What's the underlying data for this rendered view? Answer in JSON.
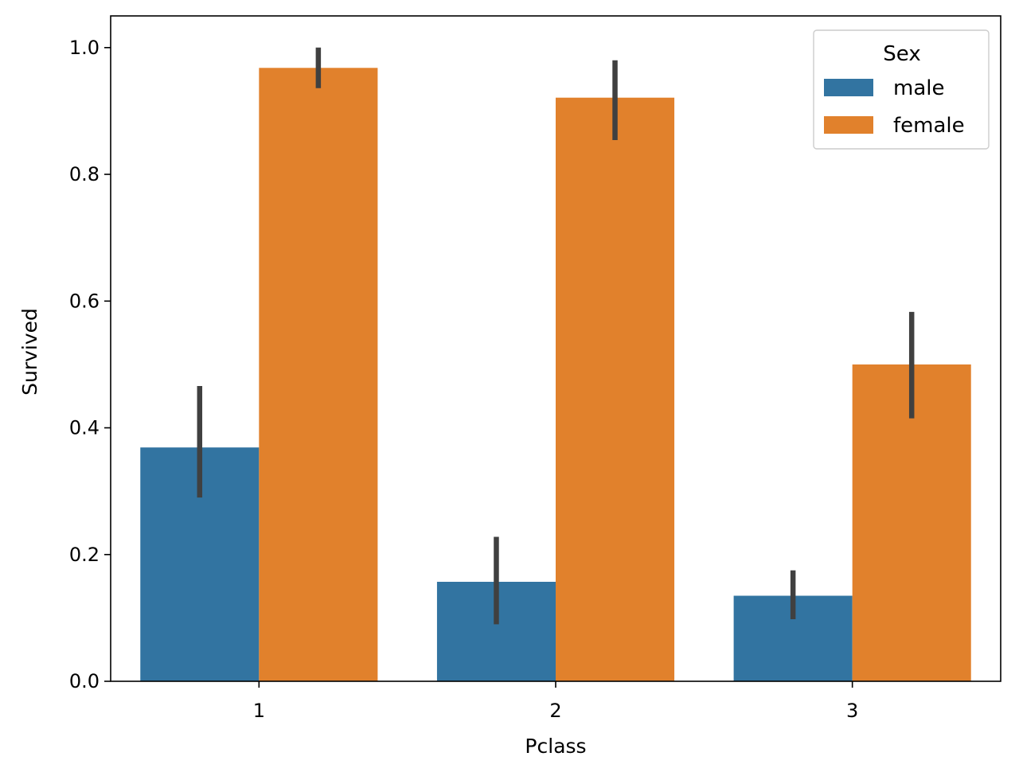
{
  "chart_data": {
    "type": "bar",
    "title": "",
    "xlabel": "Pclass",
    "ylabel": "Survived",
    "categories": [
      "1",
      "2",
      "3"
    ],
    "ylim": [
      0,
      1.05
    ],
    "yticks": [
      0.0,
      0.2,
      0.4,
      0.6,
      0.8,
      1.0
    ],
    "ytick_labels": [
      "0.0",
      "0.2",
      "0.4",
      "0.6",
      "0.8",
      "1.0"
    ],
    "grid": false,
    "legend": {
      "title": "Sex",
      "placement": "top-right"
    },
    "series": [
      {
        "name": "male",
        "color": "#3274a1",
        "values": [
          0.369,
          0.157,
          0.135
        ],
        "ci_low": [
          0.29,
          0.09,
          0.098
        ],
        "ci_high": [
          0.466,
          0.228,
          0.175
        ]
      },
      {
        "name": "female",
        "color": "#e1812c",
        "values": [
          0.968,
          0.921,
          0.5
        ],
        "ci_low": [
          0.936,
          0.854,
          0.415
        ],
        "ci_high": [
          1.0,
          0.98,
          0.583
        ]
      }
    ],
    "errorbar_color": "#404040"
  }
}
